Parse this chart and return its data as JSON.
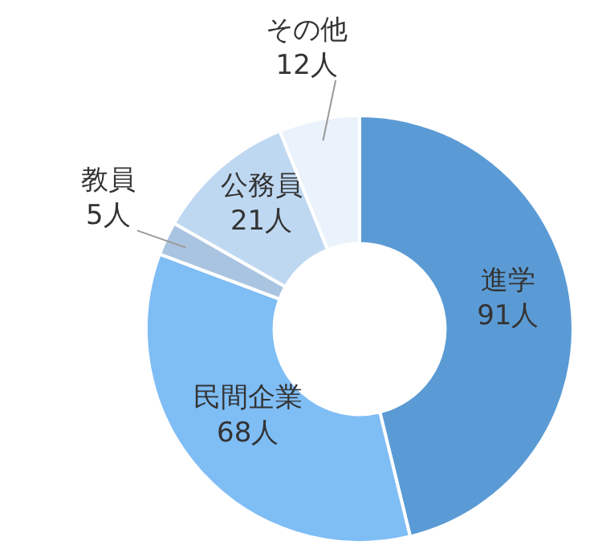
{
  "chart_data": {
    "type": "donut",
    "categories": [
      "進学",
      "民間企業",
      "教員",
      "公務員",
      "その他"
    ],
    "values": [
      91,
      68,
      5,
      21,
      12
    ],
    "value_labels": [
      "91人",
      "68人",
      "5人",
      "21人",
      "12人"
    ],
    "colors": [
      "#5b9bd5",
      "#7fbdf5",
      "#a9c4e0",
      "#bfd8f2",
      "#eaf2fb"
    ]
  }
}
